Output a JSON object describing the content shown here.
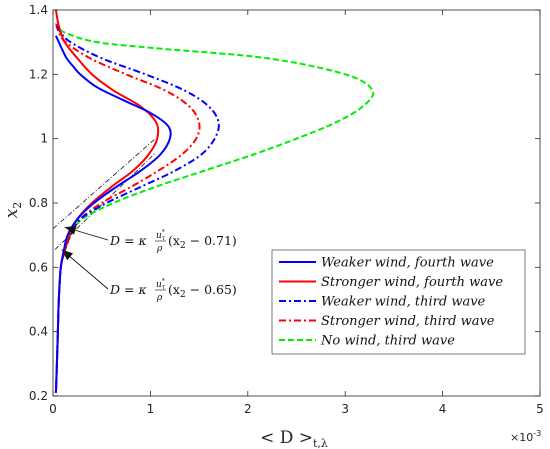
{
  "chart_data": {
    "type": "line",
    "title": "",
    "xlabel": "< D >",
    "xlabel_sub": "t,λ",
    "ylabel": "x",
    "ylabel_sub": "2",
    "xlim": [
      0,
      5
    ],
    "ylim": [
      0.2,
      1.4
    ],
    "x_exponent": "×10",
    "x_exponent_power": "-3",
    "xticks": [
      0,
      1,
      2,
      3,
      4,
      5
    ],
    "yticks": [
      0.2,
      0.4,
      0.6,
      0.8,
      1.0,
      1.2,
      1.4
    ],
    "xtick_labels": [
      "0",
      "1",
      "2",
      "3",
      "4",
      "5"
    ],
    "ytick_labels": [
      "0.2",
      "0.4",
      "0.6",
      "0.8",
      "1",
      "1.2",
      "1.4"
    ],
    "grid": false,
    "legend_position": "lower-right",
    "series": [
      {
        "name": "Weaker wind, fourth wave",
        "color": "#0000ff",
        "dash": "solid",
        "points": [
          [
            0.03,
            0.21
          ],
          [
            0.04,
            0.3
          ],
          [
            0.05,
            0.4
          ],
          [
            0.06,
            0.5
          ],
          [
            0.08,
            0.6
          ],
          [
            0.11,
            0.65
          ],
          [
            0.15,
            0.7
          ],
          [
            0.25,
            0.75
          ],
          [
            0.42,
            0.8
          ],
          [
            0.65,
            0.85
          ],
          [
            0.9,
            0.9
          ],
          [
            1.1,
            0.95
          ],
          [
            1.2,
            1.0
          ],
          [
            1.18,
            1.04
          ],
          [
            1.0,
            1.08
          ],
          [
            0.72,
            1.12
          ],
          [
            0.45,
            1.16
          ],
          [
            0.28,
            1.2
          ],
          [
            0.22,
            1.22
          ],
          [
            0.14,
            1.25
          ],
          [
            0.09,
            1.28
          ],
          [
            0.06,
            1.3
          ],
          [
            0.03,
            1.32
          ]
        ]
      },
      {
        "name": "Stronger wind, fourth wave",
        "color": "#ff0000",
        "dash": "solid",
        "points": [
          [
            0.03,
            0.21
          ],
          [
            0.04,
            0.3
          ],
          [
            0.05,
            0.4
          ],
          [
            0.06,
            0.5
          ],
          [
            0.08,
            0.6
          ],
          [
            0.12,
            0.65
          ],
          [
            0.17,
            0.7
          ],
          [
            0.25,
            0.75
          ],
          [
            0.4,
            0.8
          ],
          [
            0.6,
            0.85
          ],
          [
            0.82,
            0.9
          ],
          [
            0.98,
            0.95
          ],
          [
            1.07,
            1.0
          ],
          [
            1.06,
            1.05
          ],
          [
            0.9,
            1.1
          ],
          [
            0.62,
            1.15
          ],
          [
            0.4,
            1.2
          ],
          [
            0.25,
            1.25
          ],
          [
            0.12,
            1.3
          ],
          [
            0.06,
            1.35
          ],
          [
            0.03,
            1.4
          ]
        ]
      },
      {
        "name": "Weaker wind, third wave",
        "color": "#0000ff",
        "dash": "dashdot",
        "points": [
          [
            0.03,
            0.21
          ],
          [
            0.04,
            0.3
          ],
          [
            0.05,
            0.4
          ],
          [
            0.06,
            0.5
          ],
          [
            0.08,
            0.6
          ],
          [
            0.12,
            0.65
          ],
          [
            0.18,
            0.7
          ],
          [
            0.28,
            0.75
          ],
          [
            0.55,
            0.8
          ],
          [
            0.9,
            0.85
          ],
          [
            1.25,
            0.9
          ],
          [
            1.52,
            0.95
          ],
          [
            1.66,
            1.0
          ],
          [
            1.7,
            1.05
          ],
          [
            1.6,
            1.1
          ],
          [
            1.35,
            1.15
          ],
          [
            0.95,
            1.2
          ],
          [
            0.5,
            1.25
          ],
          [
            0.18,
            1.3
          ],
          [
            0.08,
            1.33
          ],
          [
            0.03,
            1.36
          ]
        ]
      },
      {
        "name": "Stronger wind, third wave",
        "color": "#ff0000",
        "dash": "dashdot",
        "points": [
          [
            0.03,
            0.21
          ],
          [
            0.04,
            0.3
          ],
          [
            0.05,
            0.4
          ],
          [
            0.06,
            0.5
          ],
          [
            0.08,
            0.6
          ],
          [
            0.12,
            0.65
          ],
          [
            0.18,
            0.7
          ],
          [
            0.28,
            0.75
          ],
          [
            0.5,
            0.8
          ],
          [
            0.8,
            0.85
          ],
          [
            1.08,
            0.9
          ],
          [
            1.32,
            0.95
          ],
          [
            1.47,
            1.0
          ],
          [
            1.5,
            1.05
          ],
          [
            1.4,
            1.1
          ],
          [
            1.15,
            1.15
          ],
          [
            0.75,
            1.2
          ],
          [
            0.38,
            1.25
          ],
          [
            0.13,
            1.3
          ],
          [
            0.06,
            1.33
          ],
          [
            0.03,
            1.36
          ]
        ]
      },
      {
        "name": "No wind, third wave",
        "color": "#00ee00",
        "dash": "dashed",
        "points": [
          [
            0.03,
            0.21
          ],
          [
            0.04,
            0.3
          ],
          [
            0.05,
            0.4
          ],
          [
            0.06,
            0.5
          ],
          [
            0.08,
            0.6
          ],
          [
            0.12,
            0.65
          ],
          [
            0.18,
            0.7
          ],
          [
            0.3,
            0.75
          ],
          [
            0.62,
            0.8
          ],
          [
            1.05,
            0.85
          ],
          [
            1.55,
            0.9
          ],
          [
            2.05,
            0.95
          ],
          [
            2.5,
            1.0
          ],
          [
            2.9,
            1.05
          ],
          [
            3.18,
            1.1
          ],
          [
            3.28,
            1.15
          ],
          [
            3.0,
            1.2
          ],
          [
            2.2,
            1.25
          ],
          [
            1.1,
            1.28
          ],
          [
            0.45,
            1.3
          ],
          [
            0.12,
            1.33
          ],
          [
            0.03,
            1.35
          ]
        ]
      }
    ],
    "reference_lines": [
      {
        "x0": 0.0,
        "y0": 0.72,
        "x1": 1.05,
        "y1": 1.0
      },
      {
        "x0": 0.02,
        "y0": 0.655,
        "x1": 1.05,
        "y1": 0.955
      }
    ],
    "annotations": [
      {
        "text": "D = κ u*/ρ (x2 − 0.71)",
        "lhs": "D = κ",
        "frac_num": "u",
        "frac_num_sup": "*",
        "frac_num_sub": "τ",
        "frac_den": "ρ",
        "rhs_a": "(x",
        "rhs_sub": "2",
        "rhs_b": " − 0.71)",
        "arrow_to": [
          0.12,
          0.725
        ]
      },
      {
        "text": "D = κ u*/ρ (x2 − 0.65)",
        "lhs": "D = κ",
        "frac_num": "u",
        "frac_num_sup": "*",
        "frac_num_sub": "τ",
        "frac_den": "ρ",
        "rhs_a": "(x",
        "rhs_sub": "2",
        "rhs_b": " − 0.65)",
        "arrow_to": [
          0.09,
          0.655
        ]
      }
    ]
  }
}
